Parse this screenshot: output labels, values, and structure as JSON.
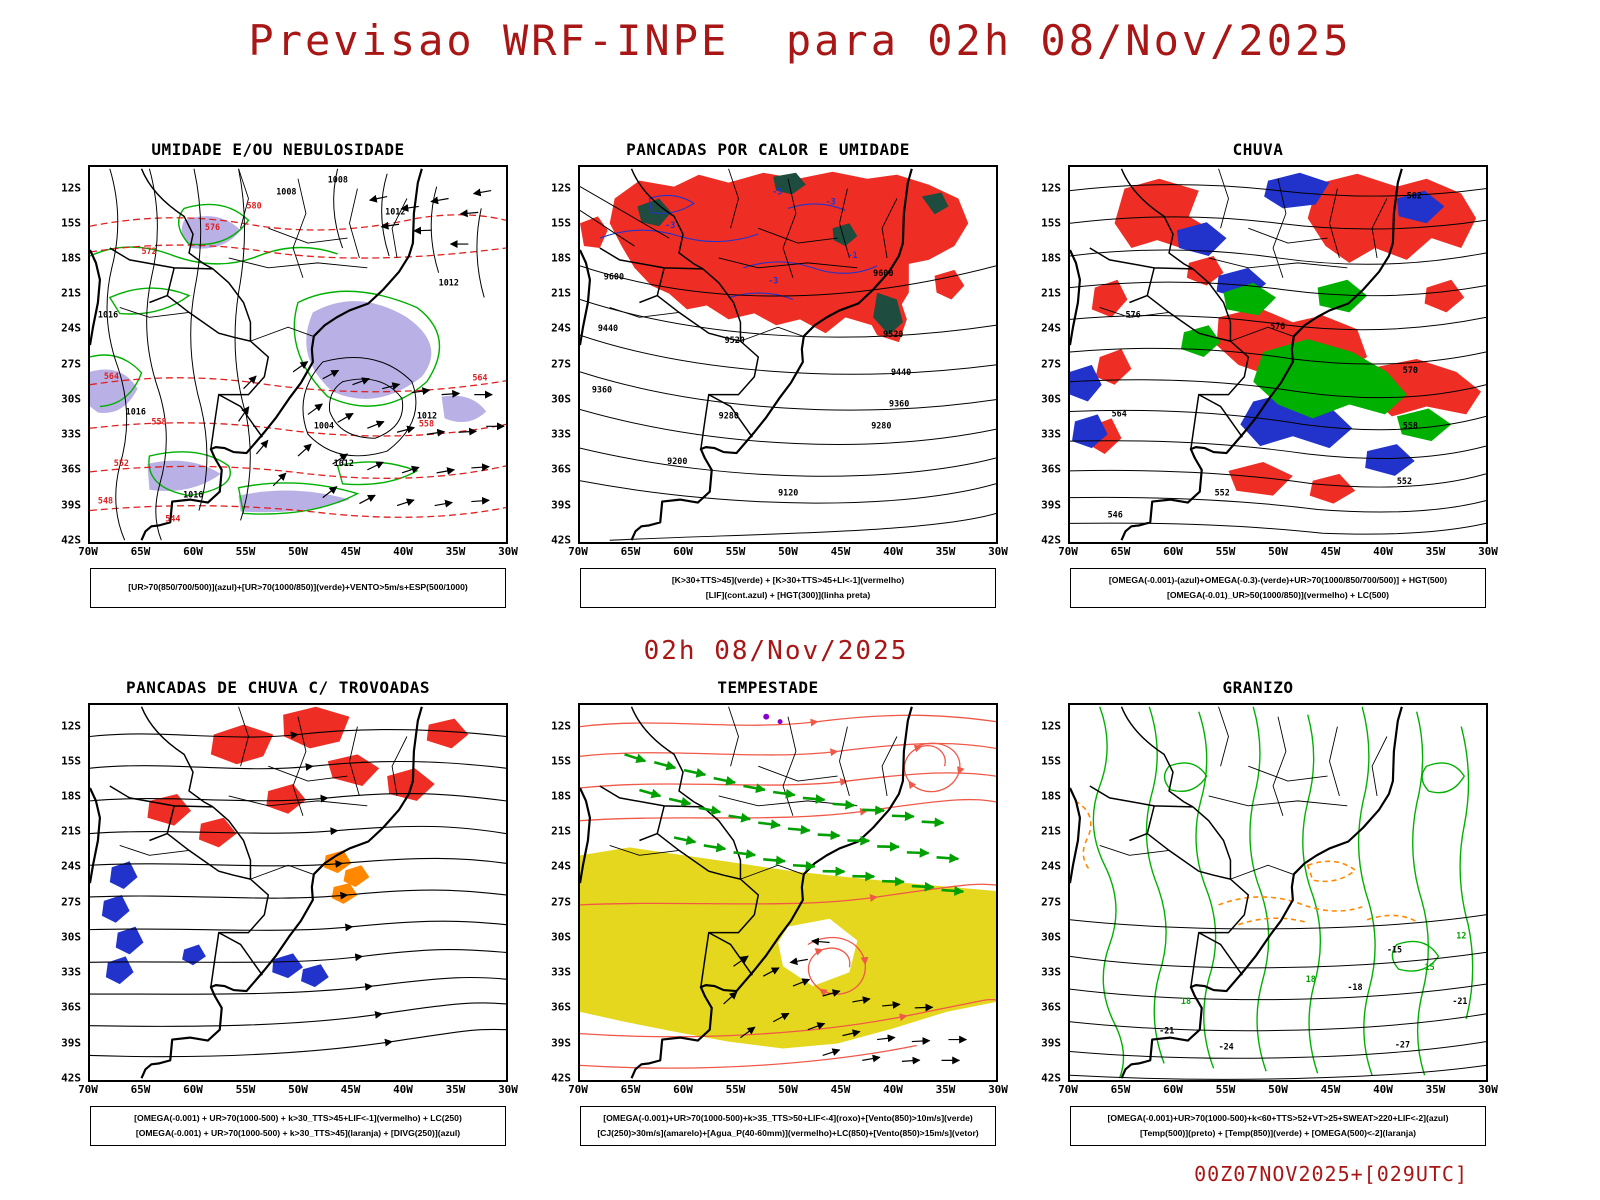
{
  "colors": {
    "title_red": "#a81616",
    "shade_red": "#ee2e24",
    "shade_green": "#00b000",
    "shade_blue": "#2233cc",
    "shade_yellow": "#e5d71e",
    "shade_orange": "#ff8800",
    "shade_lavender": "#b9b1e6",
    "shade_darkteal": "#1e4d40"
  },
  "header": {
    "title": "Previsao WRF-INPE  para 02h 08/Nov/2025"
  },
  "mid_title": "02h 08/Nov/2025",
  "footer": "00Z07NOV2025+[029UTC]",
  "axes": {
    "lat_ticks": [
      "12S",
      "15S",
      "18S",
      "21S",
      "24S",
      "27S",
      "30S",
      "33S",
      "36S",
      "39S",
      "42S"
    ],
    "lon_ticks": [
      "70W",
      "65W",
      "60W",
      "55W",
      "50W",
      "45W",
      "40W",
      "35W",
      "30W"
    ]
  },
  "panels": [
    {
      "id": "umidade-nebulosidade",
      "title": "UMIDADE E/OU NEBULOSIDADE",
      "legend_lines": [
        "[UR>70(850/700/500)](azul)+[UR>70(1000/850)](verde)+VENTO>5m/s+ESP(500/1000)"
      ],
      "map_labels": [
        [
          "1008",
          188,
          26,
          "k"
        ],
        [
          "1008",
          240,
          14,
          "k"
        ],
        [
          "1012",
          298,
          46,
          "k"
        ],
        [
          "1012",
          352,
          118,
          "k"
        ],
        [
          "1012",
          330,
          252,
          "k"
        ],
        [
          "1012",
          246,
          300,
          "k"
        ],
        [
          "1016",
          8,
          150,
          "k"
        ],
        [
          "1016",
          36,
          248,
          "k"
        ],
        [
          "1016",
          94,
          332,
          "k"
        ],
        [
          "1004",
          226,
          262,
          "k"
        ],
        [
          "580",
          158,
          40,
          "r"
        ],
        [
          "576",
          116,
          62,
          "r"
        ],
        [
          "572",
          52,
          86,
          "r"
        ],
        [
          "564",
          14,
          212,
          "r"
        ],
        [
          "558",
          62,
          258,
          "r"
        ],
        [
          "552",
          24,
          300,
          "r"
        ],
        [
          "548",
          8,
          338,
          "r"
        ],
        [
          "544",
          76,
          356,
          "r"
        ],
        [
          "558",
          332,
          260,
          "r"
        ],
        [
          "564",
          386,
          214,
          "r"
        ]
      ]
    },
    {
      "id": "pancadas-calor-umidade",
      "title": "PANCADAS POR CALOR E UMIDADE",
      "legend_lines": [
        "[K>30+TTS>45](verde) + [K>30+TTS>45+LI<-1](vermelho)",
        "[LIF](cont.azul) + [HGT(300)](linha preta)"
      ],
      "map_labels": [
        [
          "9600",
          24,
          112,
          "k"
        ],
        [
          "9600",
          296,
          108,
          "k"
        ],
        [
          "9520",
          146,
          176,
          "k"
        ],
        [
          "9520",
          306,
          170,
          "k"
        ],
        [
          "9440",
          18,
          164,
          "k"
        ],
        [
          "9440",
          314,
          208,
          "k"
        ],
        [
          "9360",
          12,
          226,
          "k"
        ],
        [
          "9360",
          312,
          240,
          "k"
        ],
        [
          "9280",
          140,
          252,
          "k"
        ],
        [
          "9280",
          294,
          262,
          "k"
        ],
        [
          "9200",
          88,
          298,
          "k"
        ],
        [
          "9120",
          200,
          330,
          "k"
        ],
        [
          "-3",
          86,
          60,
          "b"
        ],
        [
          "-5",
          194,
          26,
          "b"
        ],
        [
          "-3",
          190,
          116,
          "b"
        ],
        [
          "-1",
          270,
          90,
          "b"
        ],
        [
          "-3",
          248,
          36,
          "b"
        ]
      ]
    },
    {
      "id": "chuva",
      "title": "CHUVA",
      "legend_lines": [
        "[OMEGA(-0.001)-(azul)+OMEGA(-0.3)-(verde)+UR>70(1000/850/700/500)] + HGT(500)",
        "[OMEGA(-0.01)_UR>50(1000/850)](vermelho) + LC(500)"
      ],
      "map_labels": [
        [
          "582",
          340,
          30,
          "k"
        ],
        [
          "576",
          56,
          150,
          "k"
        ],
        [
          "576",
          202,
          162,
          "k"
        ],
        [
          "570",
          336,
          206,
          "k"
        ],
        [
          "564",
          42,
          250,
          "k"
        ],
        [
          "558",
          336,
          262,
          "k"
        ],
        [
          "552",
          146,
          330,
          "k"
        ],
        [
          "546",
          38,
          352,
          "k"
        ],
        [
          "552",
          330,
          318,
          "k"
        ]
      ]
    },
    {
      "id": "pancadas-chuva-trovoadas",
      "title": "PANCADAS DE CHUVA C/ TROVOADAS",
      "legend_lines": [
        "[OMEGA(-0.001) + UR>70(1000-500) + k>30_TTS>45+LIF<-1](vermelho) + LC(250)",
        "[OMEGA(-0.001) + UR>70(1000-500) + k>30_TTS>45](laranja) + [DIVG(250)](azul)"
      ],
      "map_labels": []
    },
    {
      "id": "tempestade",
      "title": "TEMPESTADE",
      "legend_lines": [
        "[OMEGA(-0.001)+UR>70(1000-500)+k>35_TTS>50+LIF<-4](roxo)+[Vento(850)>10m/s](verde)",
        "[CJ(250)>30m/s](amarelo)+[Agua_P(40-60mm)](vermelho)+LC(850)+[Vento(850)>15m/s](vetor)"
      ],
      "map_labels": []
    },
    {
      "id": "granizo",
      "title": "GRANIZO",
      "legend_lines": [
        "[OMEGA(-0.001)+UR>70(1000-500)+k<60+TTS>52+VT>25+SWEAT>220+LIF<-2](azul)",
        "[Temp(500)](preto) + [Temp(850)](verde) + [OMEGA(500)<-2](laranja)"
      ],
      "map_labels": [
        [
          "-15",
          320,
          248,
          "k"
        ],
        [
          "-18",
          280,
          286,
          "k"
        ],
        [
          "-21",
          90,
          330,
          "k"
        ],
        [
          "-24",
          150,
          346,
          "k"
        ],
        [
          "-27",
          328,
          344,
          "k"
        ],
        [
          "-21",
          386,
          300,
          "k"
        ],
        [
          "15",
          358,
          266,
          "g"
        ],
        [
          "18",
          238,
          278,
          "g"
        ],
        [
          "12",
          390,
          234,
          "g"
        ],
        [
          "18",
          112,
          300,
          "g"
        ]
      ]
    }
  ]
}
